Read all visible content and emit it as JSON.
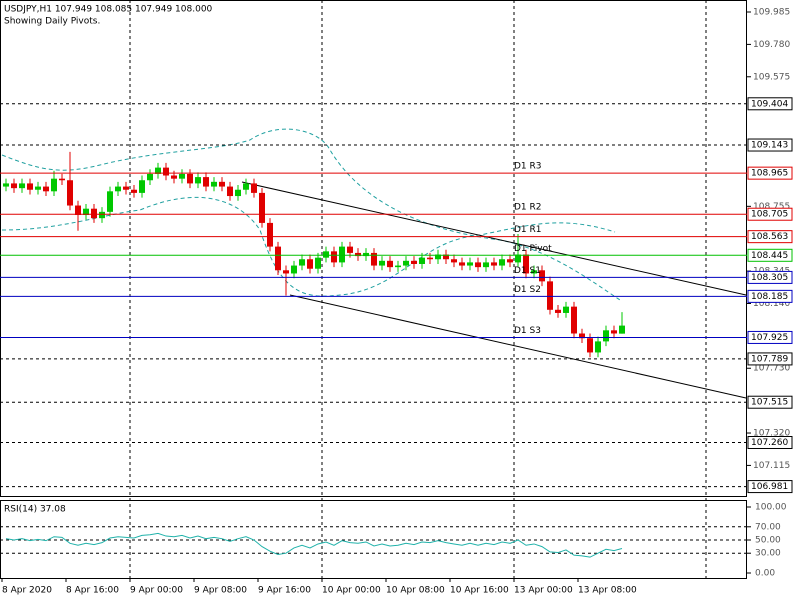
{
  "header": {
    "title": "USDJPY,H1  107.949 108.085 107.949 108.000",
    "note": "Showing Daily Pivots."
  },
  "chart_data": {
    "type": "candlestick",
    "up_color": "#00c800",
    "down_color": "#e00000",
    "ylim": [
      106.915,
      110.061
    ],
    "yticks": [
      {
        "value": 109.985,
        "label": "109.985"
      },
      {
        "value": 109.78,
        "label": "109.780"
      },
      {
        "value": 109.575,
        "label": "109.575"
      },
      {
        "value": 108.755,
        "label": "108.755"
      },
      {
        "value": 108.345,
        "label": "108.345"
      },
      {
        "value": 108.14,
        "label": "108.140"
      },
      {
        "value": 107.73,
        "label": "107.730"
      },
      {
        "value": 107.32,
        "label": "107.320"
      },
      {
        "value": 107.115,
        "label": "107.115"
      }
    ],
    "xticks": [
      {
        "value": 0,
        "label": "8 Apr 2020"
      },
      {
        "value": 8,
        "label": "8 Apr 16:00"
      },
      {
        "value": 16,
        "label": "9 Apr 00:00"
      },
      {
        "value": 24,
        "label": "9 Apr 08:00"
      },
      {
        "value": 32,
        "label": "9 Apr 16:00"
      },
      {
        "value": 40,
        "label": "10 Apr 00:00"
      },
      {
        "value": 48,
        "label": "10 Apr 08:00"
      },
      {
        "value": 56,
        "label": "10 Apr 16:00"
      },
      {
        "value": 64,
        "label": "13 Apr 00:00"
      },
      {
        "value": 72,
        "label": "13 Apr 08:00"
      }
    ],
    "levels": [
      {
        "value": 109.404,
        "label": "109.404",
        "color": "#000000",
        "dashed": true
      },
      {
        "value": 109.143,
        "label": "109.143",
        "color": "#000000",
        "dashed": true
      },
      {
        "value": 108.965,
        "label": "108.965",
        "color": "#e00000",
        "dashed": false,
        "name": "D1 R3"
      },
      {
        "value": 108.705,
        "label": "108.705",
        "color": "#e00000",
        "dashed": false,
        "name": "D1 R2"
      },
      {
        "value": 108.563,
        "label": "108.563",
        "color": "#e00000",
        "dashed": false,
        "name": "D1 R1"
      },
      {
        "value": 108.445,
        "label": "108.445",
        "color": "#00c000",
        "dashed": false,
        "name": "D1 Pivot"
      },
      {
        "value": 108.305,
        "label": "108.305",
        "color": "#0000c0",
        "dashed": false,
        "name": "D1 S1"
      },
      {
        "value": 108.185,
        "label": "108.185",
        "color": "#0000c0",
        "dashed": false,
        "name": "D1 S2"
      },
      {
        "value": 107.925,
        "label": "107.925",
        "color": "#0000c0",
        "dashed": false,
        "name": "D1 S3"
      },
      {
        "value": 107.789,
        "label": "107.789",
        "color": "#000000",
        "dashed": true
      },
      {
        "value": 107.515,
        "label": "107.515",
        "color": "#000000",
        "dashed": true
      },
      {
        "value": 107.26,
        "label": "107.260",
        "color": "#000000",
        "dashed": true
      },
      {
        "value": 106.981,
        "label": "106.981",
        "color": "#000000",
        "dashed": true
      }
    ],
    "ohlc": [
      [
        108.88,
        108.93,
        108.85,
        108.9
      ],
      [
        108.9,
        108.93,
        108.84,
        108.87
      ],
      [
        108.87,
        108.93,
        108.84,
        108.9
      ],
      [
        108.9,
        108.93,
        108.83,
        108.86
      ],
      [
        108.86,
        108.91,
        108.83,
        108.88
      ],
      [
        108.88,
        108.91,
        108.82,
        108.85
      ],
      [
        108.85,
        108.98,
        108.82,
        108.93
      ],
      [
        108.93,
        108.96,
        108.89,
        108.92
      ],
      [
        108.92,
        109.1,
        108.73,
        108.76
      ],
      [
        108.76,
        108.79,
        108.6,
        108.7
      ],
      [
        108.7,
        108.77,
        108.67,
        108.74
      ],
      [
        108.74,
        108.77,
        108.65,
        108.68
      ],
      [
        108.68,
        108.75,
        108.65,
        108.72
      ],
      [
        108.72,
        108.88,
        108.69,
        108.85
      ],
      [
        108.85,
        108.91,
        108.82,
        108.88
      ],
      [
        108.88,
        108.91,
        108.83,
        108.86
      ],
      [
        108.86,
        108.89,
        108.81,
        108.84
      ],
      [
        108.84,
        108.95,
        108.81,
        108.92
      ],
      [
        108.92,
        108.99,
        108.89,
        108.96
      ],
      [
        108.96,
        109.03,
        108.93,
        109.0
      ],
      [
        109.0,
        109.03,
        108.92,
        108.95
      ],
      [
        108.95,
        108.98,
        108.9,
        108.93
      ],
      [
        108.93,
        108.99,
        108.9,
        108.96
      ],
      [
        108.96,
        108.99,
        108.87,
        108.9
      ],
      [
        108.9,
        108.97,
        108.87,
        108.94
      ],
      [
        108.94,
        108.97,
        108.85,
        108.88
      ],
      [
        108.88,
        108.94,
        108.85,
        108.91
      ],
      [
        108.91,
        108.94,
        108.85,
        108.88
      ],
      [
        108.88,
        108.91,
        108.79,
        108.82
      ],
      [
        108.82,
        108.89,
        108.79,
        108.86
      ],
      [
        108.86,
        108.93,
        108.83,
        108.9
      ],
      [
        108.9,
        108.93,
        108.81,
        108.84
      ],
      [
        108.84,
        108.87,
        108.62,
        108.65
      ],
      [
        108.65,
        108.68,
        108.47,
        108.5
      ],
      [
        108.5,
        108.53,
        108.32,
        108.35
      ],
      [
        108.35,
        108.38,
        108.19,
        108.33
      ],
      [
        108.33,
        108.41,
        108.3,
        108.38
      ],
      [
        108.38,
        108.45,
        108.35,
        108.42
      ],
      [
        108.42,
        108.45,
        108.33,
        108.36
      ],
      [
        108.36,
        108.46,
        108.33,
        108.43
      ],
      [
        108.43,
        108.5,
        108.4,
        108.47
      ],
      [
        108.47,
        108.5,
        108.37,
        108.4
      ],
      [
        108.4,
        108.53,
        108.37,
        108.5
      ],
      [
        108.5,
        108.53,
        108.43,
        108.46
      ],
      [
        108.46,
        108.49,
        108.41,
        108.44
      ],
      [
        108.44,
        108.49,
        108.41,
        108.46
      ],
      [
        108.46,
        108.49,
        108.35,
        108.38
      ],
      [
        108.38,
        108.44,
        108.35,
        108.41
      ],
      [
        108.41,
        108.44,
        108.34,
        108.37
      ],
      [
        108.37,
        108.41,
        108.34,
        108.38
      ],
      [
        108.38,
        108.44,
        108.35,
        108.41
      ],
      [
        108.41,
        108.44,
        108.36,
        108.39
      ],
      [
        108.39,
        108.46,
        108.36,
        108.43
      ],
      [
        108.43,
        108.46,
        108.39,
        108.42
      ],
      [
        108.42,
        108.48,
        108.39,
        108.45
      ],
      [
        108.45,
        108.48,
        108.39,
        108.42
      ],
      [
        108.42,
        108.45,
        108.37,
        108.4
      ],
      [
        108.4,
        108.43,
        108.35,
        108.38
      ],
      [
        108.38,
        108.43,
        108.35,
        108.4
      ],
      [
        108.4,
        108.43,
        108.34,
        108.37
      ],
      [
        108.37,
        108.43,
        108.34,
        108.4
      ],
      [
        108.4,
        108.43,
        108.35,
        108.38
      ],
      [
        108.38,
        108.45,
        108.35,
        108.42
      ],
      [
        108.42,
        108.45,
        108.37,
        108.4
      ],
      [
        108.4,
        108.58,
        108.37,
        108.45
      ],
      [
        108.45,
        108.48,
        108.3,
        108.33
      ],
      [
        108.33,
        108.38,
        108.3,
        108.35
      ],
      [
        108.35,
        108.38,
        108.25,
        108.28
      ],
      [
        108.28,
        108.31,
        108.07,
        108.1
      ],
      [
        108.1,
        108.13,
        108.05,
        108.08
      ],
      [
        108.08,
        108.15,
        108.05,
        108.12
      ],
      [
        108.12,
        108.15,
        107.92,
        107.95
      ],
      [
        107.95,
        107.98,
        107.89,
        107.92
      ],
      [
        107.92,
        107.95,
        107.8,
        107.83
      ],
      [
        107.83,
        107.93,
        107.8,
        107.9
      ],
      [
        107.9,
        108.0,
        107.87,
        107.97
      ],
      [
        107.97,
        108.0,
        107.92,
        107.95
      ],
      [
        107.949,
        108.085,
        107.949,
        108.0
      ]
    ],
    "rsi": {
      "title": "RSI(14) 37.08",
      "color": "#20b2aa",
      "ylim": [
        0,
        100
      ],
      "yticks": [
        {
          "value": 100,
          "label": "100.00"
        },
        {
          "value": 70,
          "label": "70.00"
        },
        {
          "value": 50,
          "label": "50.00"
        },
        {
          "value": 30,
          "label": "30.00"
        },
        {
          "value": 0,
          "label": "0.00"
        }
      ],
      "values": [
        52,
        50,
        52,
        49,
        51,
        49,
        55,
        54,
        45,
        42,
        45,
        43,
        46,
        53,
        55,
        54,
        53,
        57,
        58,
        60,
        56,
        55,
        57,
        53,
        56,
        52,
        54,
        52,
        48,
        52,
        55,
        50,
        40,
        33,
        28,
        30,
        38,
        42,
        38,
        44,
        47,
        42,
        49,
        46,
        45,
        47,
        41,
        44,
        41,
        42,
        45,
        43,
        47,
        46,
        49,
        46,
        44,
        42,
        45,
        42,
        45,
        43,
        47,
        45,
        50,
        42,
        44,
        40,
        32,
        31,
        35,
        27,
        26,
        24,
        30,
        36,
        34,
        37.08
      ]
    }
  }
}
